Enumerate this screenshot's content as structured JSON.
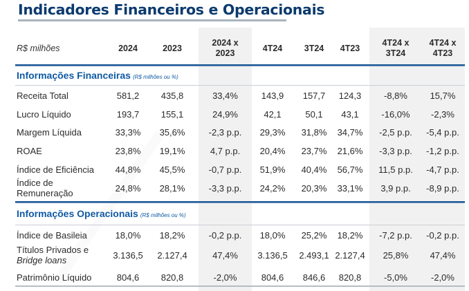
{
  "title": "Indicadores Financeiros e Operacionais",
  "units_label": "R$ milhões",
  "columns": [
    {
      "l1": "2024",
      "l2": ""
    },
    {
      "l1": "2023",
      "l2": ""
    },
    {
      "l1": "2024 x",
      "l2": "2023"
    },
    {
      "l1": "4T24",
      "l2": ""
    },
    {
      "l1": "3T24",
      "l2": ""
    },
    {
      "l1": "4T23",
      "l2": ""
    },
    {
      "l1": "4T24 x",
      "l2": "3T24"
    },
    {
      "l1": "4T24 x",
      "l2": "4T23"
    }
  ],
  "sections": [
    {
      "title": "Informações Financeiras",
      "subtitle": "(R$ milhões ou %)",
      "rows": [
        {
          "label": "Receita Total",
          "label2": "",
          "values": [
            "581,2",
            "435,8",
            "33,4%",
            "143,9",
            "157,7",
            "124,3",
            "-8,8%",
            "15,7%"
          ]
        },
        {
          "label": "Lucro Líquido",
          "label2": "",
          "values": [
            "193,7",
            "155,1",
            "24,9%",
            "42,1",
            "50,1",
            "43,1",
            "-16,0%",
            "-2,3%"
          ]
        },
        {
          "label": "Margem Líquida",
          "label2": "",
          "values": [
            "33,3%",
            "35,6%",
            "-2,3 p.p.",
            "29,3%",
            "31,8%",
            "34,7%",
            "-2,5 p.p.",
            "-5,4 p.p."
          ]
        },
        {
          "label": "ROAE",
          "label2": "",
          "values": [
            "23,8%",
            "19,1%",
            "4,7 p.p.",
            "20,4%",
            "23,7%",
            "21,6%",
            "-3,3 p.p.",
            "-1,2 p.p."
          ]
        },
        {
          "label": "Índice de Eficiência",
          "label2": "",
          "values": [
            "44,8%",
            "45,5%",
            "-0,7 p.p.",
            "51,9%",
            "40,4%",
            "56,7%",
            "11,5 p.p.",
            "-4,7 p.p."
          ]
        },
        {
          "label": "Índice de",
          "label2": "Remuneração",
          "values": [
            "24,8%",
            "28,1%",
            "-3,3 p.p.",
            "24,2%",
            "20,3%",
            "33,1%",
            "3,9 p.p.",
            "-8,9 p.p."
          ]
        }
      ]
    },
    {
      "title": "Informações Operacionais",
      "subtitle": "(R$ milhões ou %)",
      "rows": [
        {
          "label": "Índice de Basileia",
          "label2": "",
          "values": [
            "18,0%",
            "18,2%",
            "-0,2 p.p.",
            "18,0%",
            "25,2%",
            "18,2%",
            "-7,2 p.p.",
            "-0,2 p.p."
          ]
        },
        {
          "label": "Títulos Privados e",
          "label2": "Bridge loans",
          "values": [
            "3.136,5",
            "2.127,4",
            "47,4%",
            "3.136,5",
            "2.493,1",
            "2.127,4",
            "25,8%",
            "47,4%"
          ]
        },
        {
          "label": "Patrimônio Líquido",
          "label2": "",
          "values": [
            "804,6",
            "820,8",
            "-2,0%",
            "804,6",
            "846,6",
            "820,8",
            "-5,0%",
            "-2,0%"
          ]
        }
      ]
    }
  ],
  "colors": {
    "title": "#0b3a6e",
    "section_title": "#0f5aa3",
    "rule_blue": "#1f5a96",
    "shaded_column": "#f1f1f1"
  }
}
